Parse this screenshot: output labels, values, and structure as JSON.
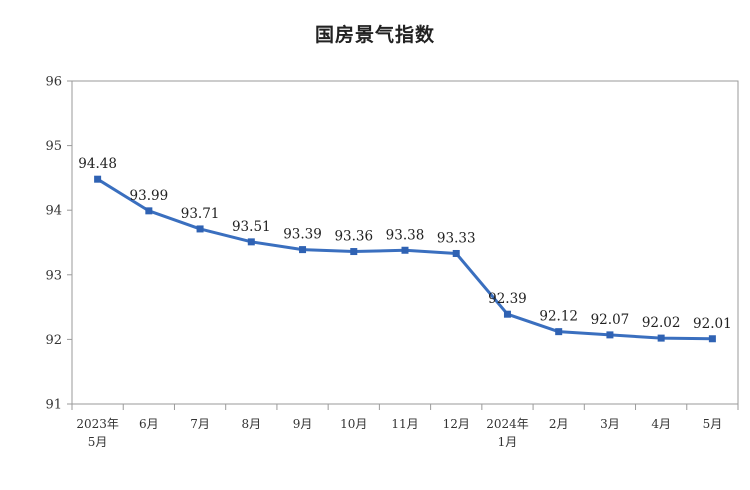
{
  "chart_data": {
    "type": "line",
    "title": "国房景气指数",
    "xlabel": "",
    "ylabel": "",
    "categories": [
      [
        "2023年",
        "5月"
      ],
      [
        "6月"
      ],
      [
        "7月"
      ],
      [
        "8月"
      ],
      [
        "9月"
      ],
      [
        "10月"
      ],
      [
        "11月"
      ],
      [
        "12月"
      ],
      [
        "2024年",
        "1月"
      ],
      [
        "2月"
      ],
      [
        "3月"
      ],
      [
        "4月"
      ],
      [
        "5月"
      ]
    ],
    "series": [
      {
        "values": [
          94.48,
          93.99,
          93.71,
          93.51,
          93.39,
          93.36,
          93.38,
          93.33,
          92.39,
          92.12,
          92.07,
          92.02,
          92.01
        ],
        "labels": [
          "94.48",
          "93.99",
          "93.71",
          "93.51",
          "93.39",
          "93.36",
          "93.38",
          "93.33",
          "92.39",
          "92.12",
          "92.07",
          "92.02",
          "92.01"
        ]
      }
    ],
    "ylim": [
      91,
      96
    ],
    "yticks": [
      "91",
      "92",
      "93",
      "94",
      "95",
      "96"
    ],
    "grid": false,
    "legend": "none",
    "colors": {
      "line": "#3a6fbf",
      "marker": "#2f62b3",
      "axis": "#9a9a9a"
    }
  }
}
